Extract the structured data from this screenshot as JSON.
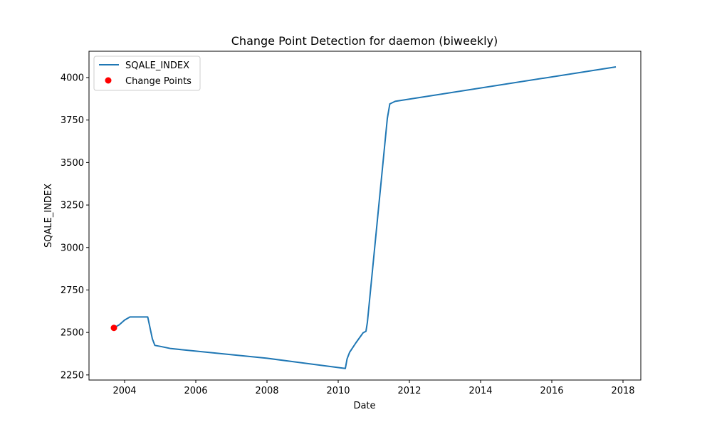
{
  "chart_data": {
    "type": "line",
    "title": "Change Point Detection for daemon (biweekly)",
    "xlabel": "Date",
    "ylabel": "SQALE_INDEX",
    "xlim": [
      2003.0,
      2018.5
    ],
    "ylim": [
      2220,
      4155
    ],
    "x_ticks": [
      2004,
      2006,
      2008,
      2010,
      2012,
      2014,
      2016,
      2018
    ],
    "y_ticks": [
      2250,
      2500,
      2750,
      3000,
      3250,
      3500,
      3750,
      4000
    ],
    "grid": false,
    "legend_placement": "top-left",
    "series": [
      {
        "name": "SQALE_INDEX",
        "type": "line",
        "color": "#1f77b4",
        "x": [
          2003.7,
          2003.85,
          2004.0,
          2004.15,
          2004.3,
          2004.5,
          2004.65,
          2004.78,
          2004.85,
          2005.0,
          2005.3,
          2008.0,
          2010.2,
          2010.25,
          2010.32,
          2010.5,
          2010.7,
          2010.78,
          2010.82,
          2011.38,
          2011.45,
          2011.6,
          2017.8
        ],
        "y": [
          2527,
          2545,
          2573,
          2591,
          2591,
          2591,
          2591,
          2462,
          2424,
          2418,
          2405,
          2348,
          2288,
          2345,
          2383,
          2440,
          2498,
          2507,
          2560,
          3760,
          3845,
          3860,
          4063
        ]
      },
      {
        "name": "Change Points",
        "type": "scatter",
        "color": "#ff0000",
        "x": [
          2003.7
        ],
        "y": [
          2527
        ]
      }
    ]
  }
}
